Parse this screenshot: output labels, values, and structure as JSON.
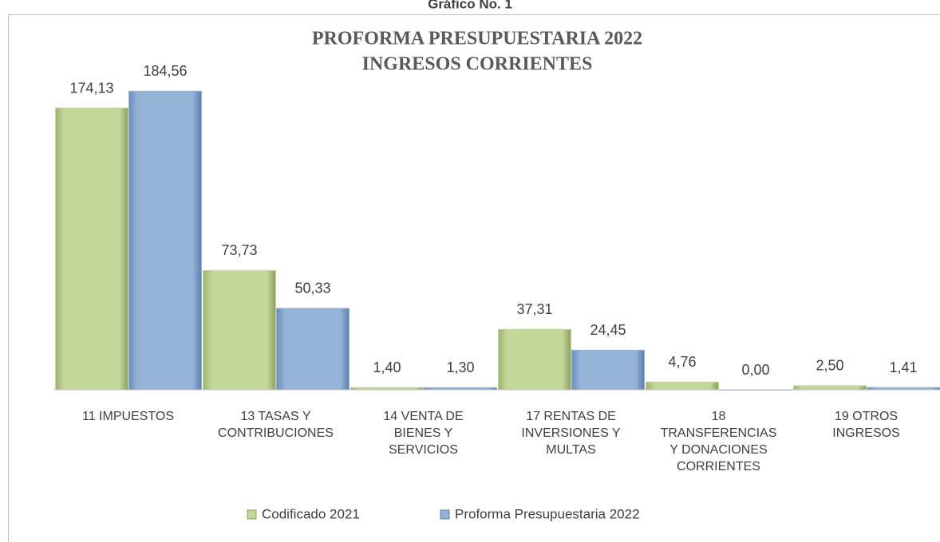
{
  "chart_data": {
    "type": "bar",
    "caption": "Gráfico No. 1",
    "title": [
      "PROFORMA PRESUPUESTARIA 2022",
      "INGRESOS CORRIENTES"
    ],
    "categories": [
      "11 IMPUESTOS",
      "13 TASAS Y CONTRIBUCIONES",
      "14 VENTA DE BIENES Y SERVICIOS",
      "17 RENTAS DE INVERSIONES Y MULTAS",
      "18 TRANSFERENCIAS Y DONACIONES CORRIENTES",
      "19 OTROS INGRESOS"
    ],
    "series": [
      {
        "name": "Codificado 2021",
        "color": "#c4d79b",
        "values": [
          174.13,
          73.73,
          1.4,
          37.31,
          4.76,
          2.5
        ],
        "value_labels": [
          "174,13",
          "73,73",
          "1,40",
          "37,31",
          "4,76",
          "2,50"
        ]
      },
      {
        "name": "Proforma Presupuestaria 2022",
        "color": "#95b3d7",
        "values": [
          184.56,
          50.33,
          1.3,
          24.45,
          0.0,
          1.41
        ],
        "value_labels": [
          "184,56",
          "50,33",
          "1,30",
          "24,45",
          "0,00",
          "1,41"
        ]
      }
    ],
    "ylim": [
      0,
      200
    ]
  }
}
